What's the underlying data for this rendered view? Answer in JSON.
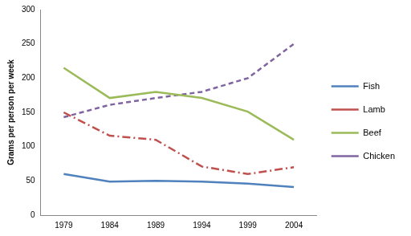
{
  "chart_data": {
    "type": "line",
    "y_label": "Grams per person per week",
    "categories": [
      "1979",
      "1984",
      "1989",
      "1994",
      "1999",
      "2004"
    ],
    "series": [
      {
        "name": "Fish",
        "color": "#4f81bd",
        "line_style": "solid",
        "values": [
          60,
          49,
          50,
          49,
          46,
          41
        ]
      },
      {
        "name": "Lamb",
        "color": "#c0504d",
        "line_style": "dashdot",
        "values": [
          150,
          116,
          110,
          71,
          60,
          70
        ]
      },
      {
        "name": "Beef",
        "color": "#9bbb59",
        "line_style": "solid",
        "values": [
          215,
          171,
          180,
          171,
          151,
          110
        ]
      },
      {
        "name": "Chicken",
        "color": "#8064a2",
        "line_style": "dashed",
        "values": [
          143,
          161,
          171,
          180,
          200,
          250
        ]
      }
    ],
    "ylim": [
      0,
      300
    ],
    "yticks": [
      0,
      50,
      100,
      150,
      200,
      250,
      300
    ],
    "grid": false,
    "legend": "right",
    "marker": "none"
  }
}
